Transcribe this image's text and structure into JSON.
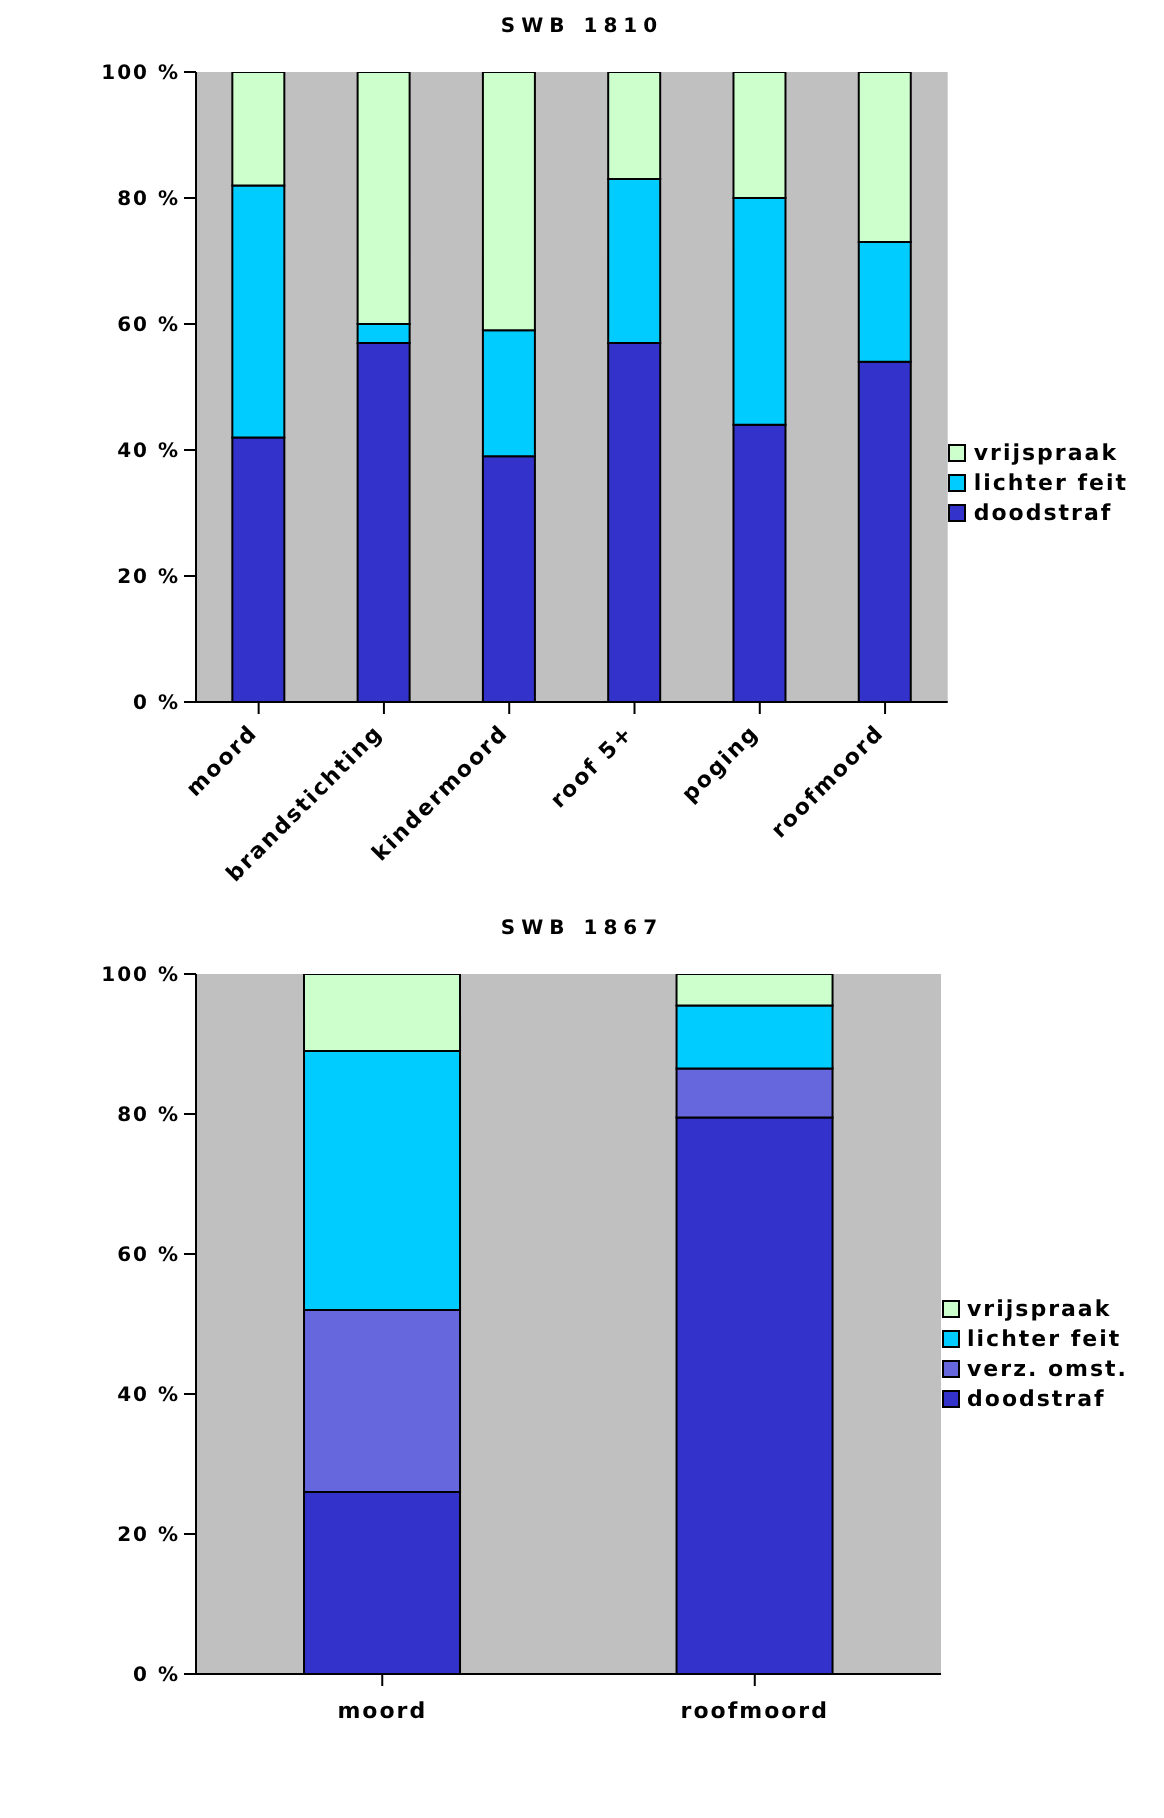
{
  "chart_data": [
    {
      "type": "bar",
      "title": "SWB 1810",
      "stacked": true,
      "legend": "right",
      "categories": [
        "moord",
        "brandstichting",
        "kindermoord",
        "roof 5+",
        "poging",
        "roofmoord"
      ],
      "series": [
        {
          "name": "doodstraf",
          "color": "#3333cc",
          "values": [
            42,
            57,
            39,
            57,
            44,
            54
          ]
        },
        {
          "name": "lichter feit",
          "color": "#00ccff",
          "values": [
            40,
            3,
            20,
            26,
            36,
            19
          ]
        },
        {
          "name": "vrijspraak",
          "color": "#ccffcc",
          "values": [
            18,
            40,
            41,
            17,
            20,
            27
          ]
        }
      ],
      "ylim": [
        0,
        100
      ],
      "yticks": [
        {
          "value": 0,
          "label": "0 %"
        },
        {
          "value": 20,
          "label": "20 %"
        },
        {
          "value": 40,
          "label": "40 %"
        },
        {
          "value": 60,
          "label": "60 %"
        },
        {
          "value": 80,
          "label": "80 %"
        },
        {
          "value": 100,
          "label": "100 %"
        }
      ]
    },
    {
      "type": "bar",
      "title": "SWB 1867",
      "stacked": true,
      "legend": "right",
      "categories": [
        "moord",
        "roofmoord"
      ],
      "series": [
        {
          "name": "doodstraf",
          "color": "#3333cc",
          "values": [
            26,
            79.5
          ]
        },
        {
          "name": "verz. omst.",
          "color": "#6666dd",
          "values": [
            26,
            7
          ]
        },
        {
          "name": "lichter feit",
          "color": "#00ccff",
          "values": [
            37,
            9
          ]
        },
        {
          "name": "vrijspraak",
          "color": "#ccffcc",
          "values": [
            11,
            4.5
          ]
        }
      ],
      "ylim": [
        0,
        100
      ],
      "yticks": [
        {
          "value": 0,
          "label": "0 %"
        },
        {
          "value": 20,
          "label": "20 %"
        },
        {
          "value": 40,
          "label": "40 %"
        },
        {
          "value": 60,
          "label": "60 %"
        },
        {
          "value": 80,
          "label": "80 %"
        },
        {
          "value": 100,
          "label": "100 %"
        }
      ]
    }
  ]
}
